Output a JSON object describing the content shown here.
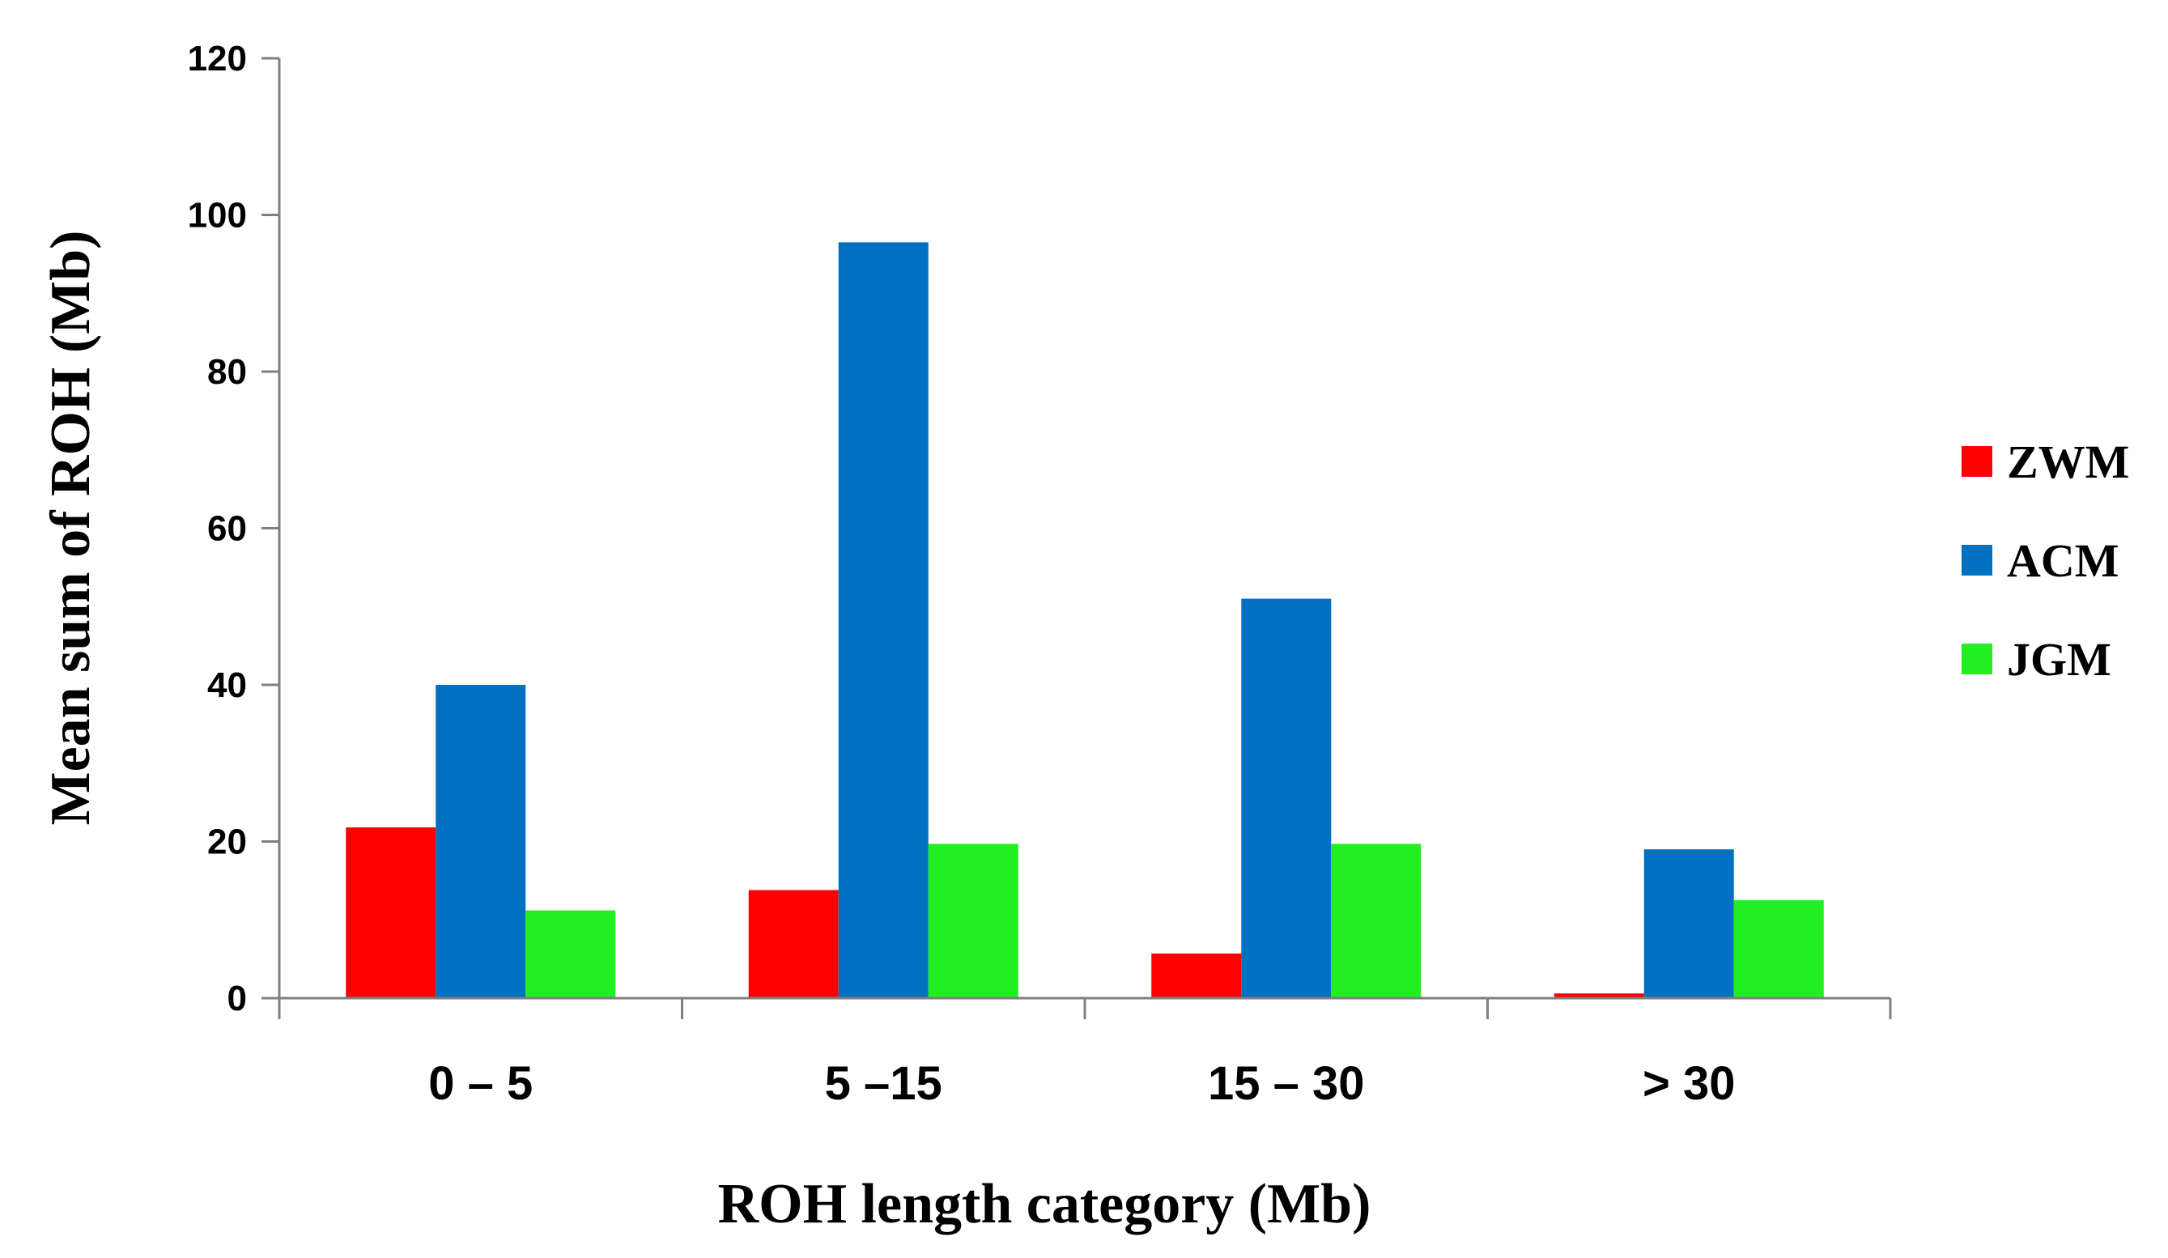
{
  "chart_data": {
    "type": "bar",
    "categories": [
      "0 – 5",
      "5 –15",
      "15 – 30",
      "> 30"
    ],
    "series": [
      {
        "name": "ZWM",
        "color": "#ff0000",
        "values": [
          21.8,
          13.8,
          5.7,
          0.6
        ]
      },
      {
        "name": "ACM",
        "color": "#0070c0",
        "values": [
          40.0,
          96.5,
          51.0,
          19.0
        ]
      },
      {
        "name": "JGM",
        "color": "#22ee22",
        "values": [
          11.2,
          19.7,
          19.7,
          12.5
        ]
      }
    ],
    "title": "",
    "xlabel": "ROH length category (Mb)",
    "ylabel": "Mean sum of ROH (Mb)",
    "ylim": [
      0,
      120
    ],
    "yticks": [
      0,
      20,
      40,
      60,
      80,
      100,
      120
    ],
    "grid": false,
    "legend": "right"
  }
}
